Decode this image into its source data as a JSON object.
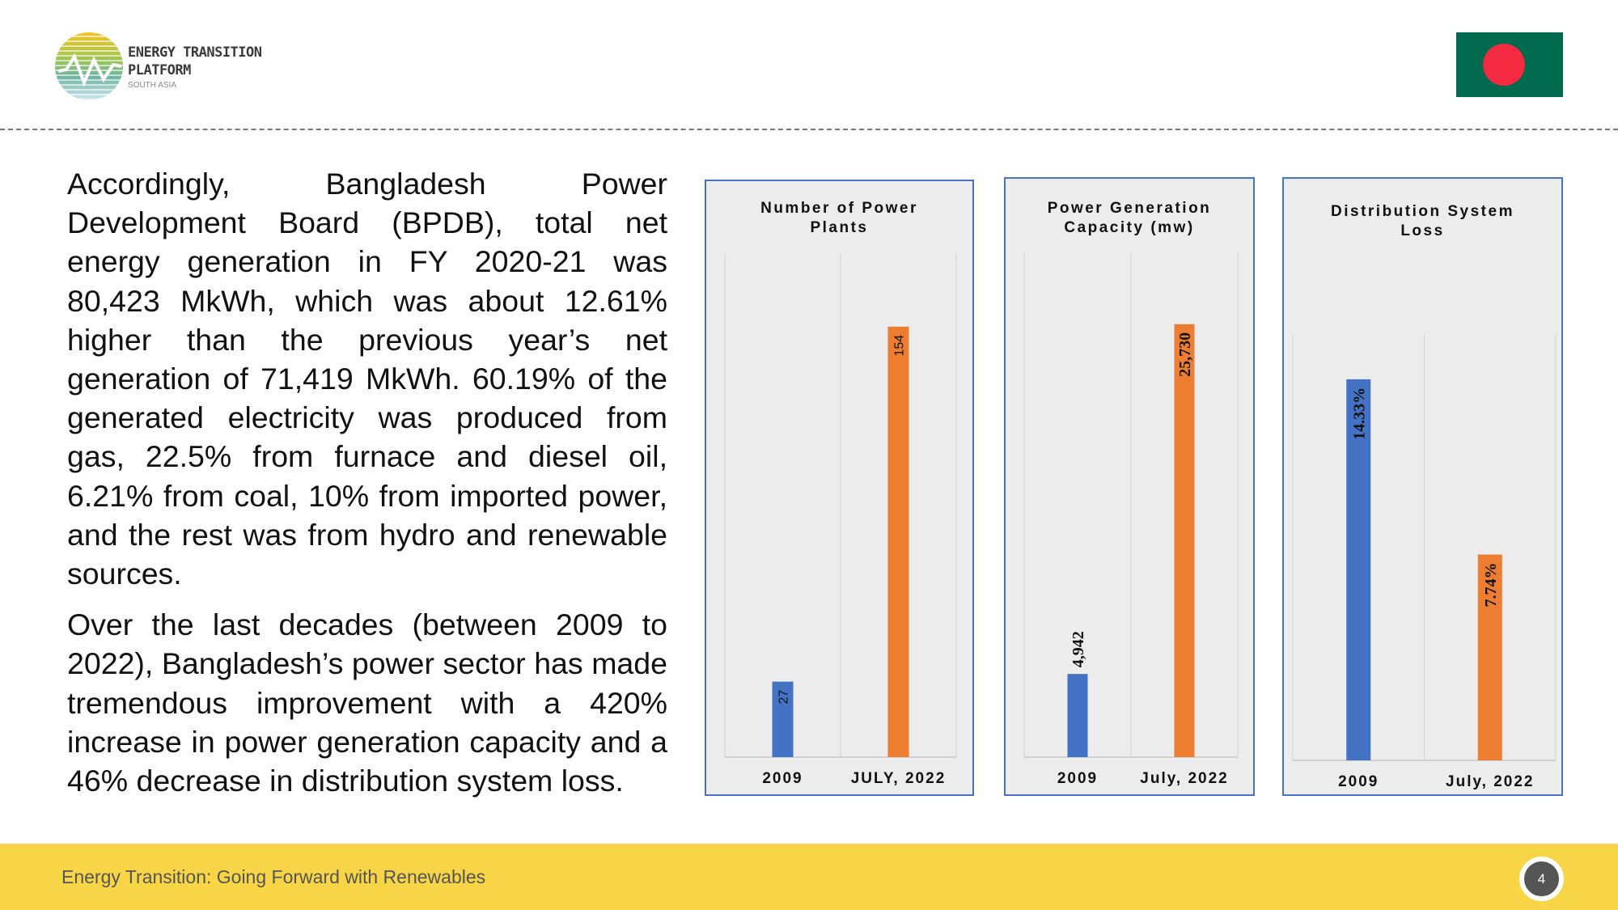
{
  "header": {
    "logo": {
      "line1": "ENERGY TRANSITION",
      "line2": "PLATFORM",
      "line3": "SOUTH ASIA"
    },
    "flag": "bangladesh-flag"
  },
  "body": {
    "paragraphs": [
      "Accordingly, Bangladesh Power Development Board (BPDB), total net energy generation in FY 2020-21 was 80,423 MkWh, which was about 12.61% higher than the previous year’s net generation of 71,419 MkWh. 60.19% of the generated electricity was produced from gas, 22.5% from furnace and diesel oil, 6.21% from coal, 10% from imported power, and the rest was from hydro and renewable sources.",
      "Over the last decades (between 2009 to 2022), Bangladesh’s power sector has made tremendous improvement with a 420% increase in power generation capacity and a 46% decrease in distribution system loss."
    ]
  },
  "colors": {
    "series_2009": "#4472c4",
    "series_2022": "#ed7d31",
    "chart_border": "#4a72c4",
    "footer": "#f8d546"
  },
  "chart_data": [
    {
      "type": "bar",
      "title": "Number of Power Plants",
      "categories": [
        "2009",
        "JULY, 2022"
      ],
      "values": [
        27,
        154
      ],
      "labels": [
        "27",
        "154"
      ],
      "ylim": [
        0,
        180
      ],
      "grid": true
    },
    {
      "type": "bar",
      "title": "Power Generation Capacity (mw)",
      "categories": [
        "2009",
        "July, 2022"
      ],
      "values": [
        4942,
        25730
      ],
      "labels": [
        "4,942",
        "25,730"
      ],
      "ylim": [
        0,
        30000
      ],
      "grid": true
    },
    {
      "type": "bar",
      "title": "Distribution System Loss",
      "categories": [
        "2009",
        "July, 2022"
      ],
      "values": [
        14.33,
        7.74
      ],
      "labels": [
        "14.33%",
        "7.74%"
      ],
      "ylim": [
        0,
        16
      ],
      "grid": true
    }
  ],
  "footer": {
    "text": "Energy Transition: Going Forward with Renewables",
    "page": "4"
  }
}
